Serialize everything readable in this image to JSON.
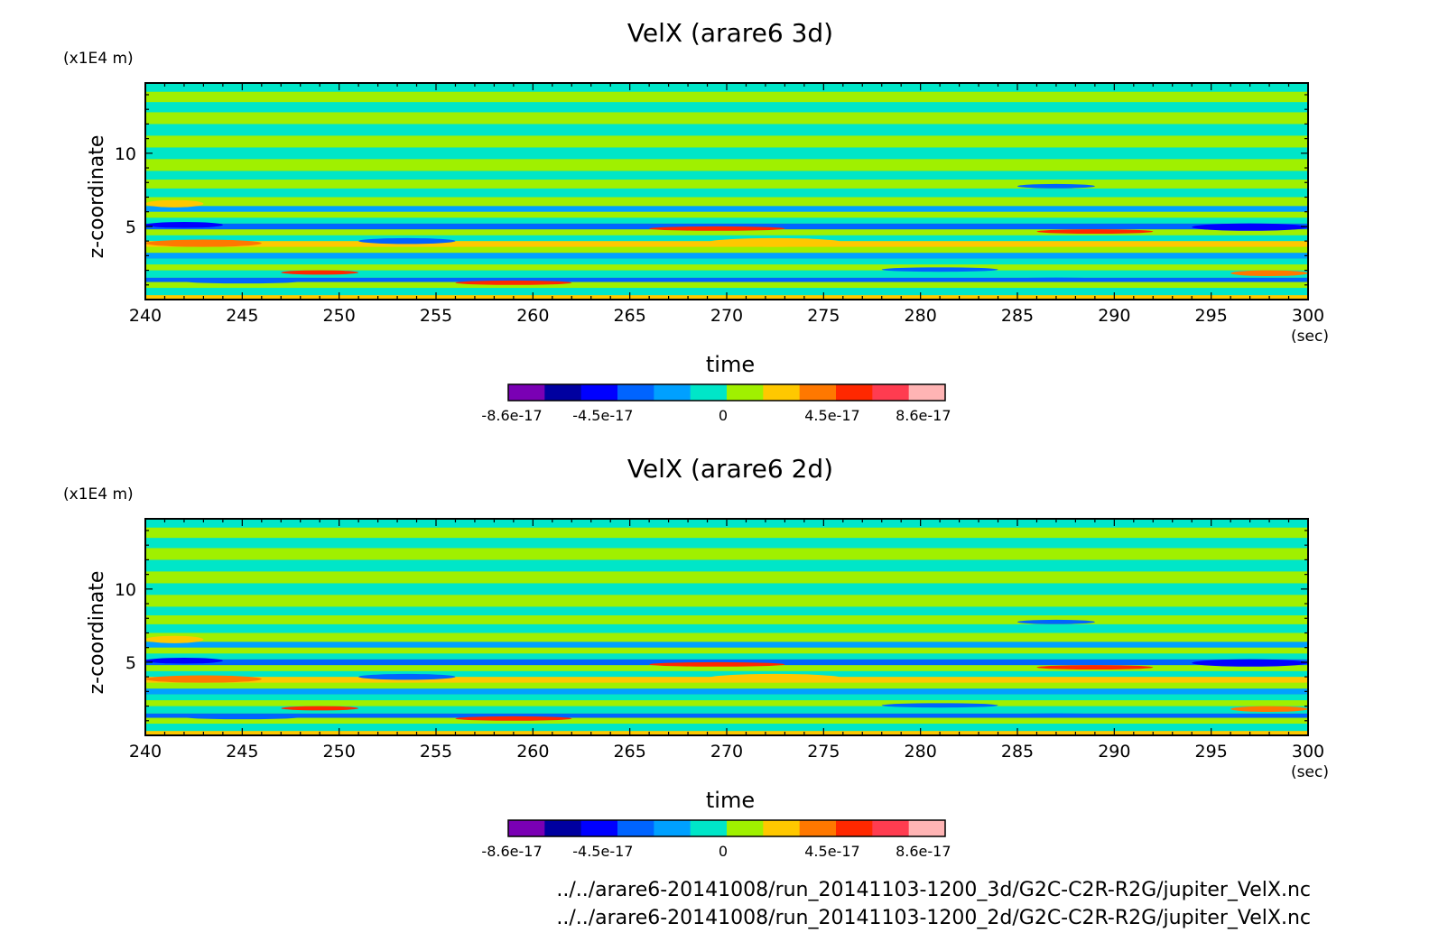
{
  "chart_data": [
    {
      "type": "heatmap",
      "title": "VelX (arare6 3d)",
      "xlabel": "time",
      "x_unit": "(sec)",
      "ylabel": "z-coordinate",
      "y_unit": "(x1E4 m)",
      "xlim": [
        240,
        300
      ],
      "ylim": [
        0,
        14.8
      ],
      "x_ticks": [
        240,
        245,
        250,
        255,
        260,
        265,
        270,
        275,
        280,
        285,
        290,
        295,
        300
      ],
      "y_ticks": [
        5,
        10
      ],
      "colorbar": {
        "levels": [
          -8.6e-17,
          -6.88e-17,
          -5.16e-17,
          -3.44e-17,
          -1.72e-17,
          0,
          1.72e-17,
          3.44e-17,
          5.16e-17,
          6.88e-17,
          8.6e-17
        ],
        "tick_labels": [
          "-8.6e-17",
          "-4.5e-17",
          "0",
          "4.5e-17",
          "8.6e-17"
        ],
        "colors": [
          "#7a00b4",
          "#0000a0",
          "#0000ff",
          "#0064ff",
          "#00a0ff",
          "#00e6c8",
          "#a0f000",
          "#ffc800",
          "#ff7800",
          "#ff2800",
          "#ff3c50",
          "#ffb4b4"
        ]
      },
      "bands": [
        {
          "z0": 0.0,
          "z1": 0.3,
          "level": 7
        },
        {
          "z0": 0.3,
          "z1": 0.8,
          "level": 5
        },
        {
          "z0": 0.8,
          "z1": 1.2,
          "level": 6
        },
        {
          "z0": 1.2,
          "z1": 1.5,
          "level": 3
        },
        {
          "z0": 1.5,
          "z1": 2.0,
          "level": 5
        },
        {
          "z0": 2.0,
          "z1": 2.4,
          "level": 6
        },
        {
          "z0": 2.4,
          "z1": 2.8,
          "level": 5
        },
        {
          "z0": 2.8,
          "z1": 3.2,
          "level": 4
        },
        {
          "z0": 3.2,
          "z1": 3.6,
          "level": 6
        },
        {
          "z0": 3.6,
          "z1": 4.0,
          "level": 7
        },
        {
          "z0": 4.0,
          "z1": 4.4,
          "level": 5
        },
        {
          "z0": 4.4,
          "z1": 4.8,
          "level": 6
        },
        {
          "z0": 4.8,
          "z1": 5.2,
          "level": 3
        },
        {
          "z0": 5.2,
          "z1": 5.6,
          "level": 5
        },
        {
          "z0": 5.6,
          "z1": 6.0,
          "level": 6
        },
        {
          "z0": 6.0,
          "z1": 6.4,
          "level": 4
        },
        {
          "z0": 6.4,
          "z1": 7.0,
          "level": 6
        },
        {
          "z0": 7.0,
          "z1": 7.6,
          "level": 5
        },
        {
          "z0": 7.6,
          "z1": 8.2,
          "level": 6
        },
        {
          "z0": 8.2,
          "z1": 8.8,
          "level": 5
        },
        {
          "z0": 8.8,
          "z1": 9.6,
          "level": 6
        },
        {
          "z0": 9.6,
          "z1": 10.4,
          "level": 5
        },
        {
          "z0": 10.4,
          "z1": 11.2,
          "level": 6
        },
        {
          "z0": 11.2,
          "z1": 12.0,
          "level": 5
        },
        {
          "z0": 12.0,
          "z1": 12.8,
          "level": 6
        },
        {
          "z0": 12.8,
          "z1": 13.5,
          "level": 5
        },
        {
          "z0": 13.5,
          "z1": 14.2,
          "level": 6
        },
        {
          "z0": 14.2,
          "z1": 14.8,
          "level": 5
        }
      ],
      "features": [
        {
          "t0": 240,
          "t1": 244,
          "z0": 4.9,
          "z1": 5.3,
          "level": 2
        },
        {
          "t0": 240,
          "t1": 246,
          "z0": 3.6,
          "z1": 4.1,
          "level": 8
        },
        {
          "t0": 240,
          "t1": 243,
          "z0": 6.3,
          "z1": 6.8,
          "level": 7
        },
        {
          "t0": 247,
          "t1": 251,
          "z0": 1.7,
          "z1": 2.0,
          "level": 9
        },
        {
          "t0": 242,
          "t1": 248,
          "z0": 1.1,
          "z1": 1.4,
          "level": 3
        },
        {
          "t0": 251,
          "t1": 256,
          "z0": 3.8,
          "z1": 4.2,
          "level": 3
        },
        {
          "t0": 256,
          "t1": 262,
          "z0": 1.0,
          "z1": 1.3,
          "level": 9
        },
        {
          "t0": 266,
          "t1": 273,
          "z0": 4.7,
          "z1": 5.0,
          "level": 9
        },
        {
          "t0": 269,
          "t1": 276,
          "z0": 3.6,
          "z1": 4.2,
          "level": 7
        },
        {
          "t0": 278,
          "t1": 284,
          "z0": 1.9,
          "z1": 2.2,
          "level": 3
        },
        {
          "t0": 286,
          "t1": 292,
          "z0": 4.5,
          "z1": 4.8,
          "level": 9
        },
        {
          "t0": 284,
          "t1": 290,
          "z0": 1.2,
          "z1": 1.5,
          "level": 3
        },
        {
          "t0": 294,
          "t1": 300,
          "z0": 4.7,
          "z1": 5.2,
          "level": 2
        },
        {
          "t0": 296,
          "t1": 300,
          "z0": 1.6,
          "z1": 2.0,
          "level": 8
        },
        {
          "t0": 285,
          "t1": 289,
          "z0": 7.6,
          "z1": 7.9,
          "level": 3
        }
      ]
    },
    {
      "type": "heatmap",
      "title": "VelX (arare6 2d)",
      "xlabel": "time",
      "x_unit": "(sec)",
      "ylabel": "z-coordinate",
      "y_unit": "(x1E4 m)",
      "xlim": [
        240,
        300
      ],
      "ylim": [
        0,
        14.8
      ],
      "x_ticks": [
        240,
        245,
        250,
        255,
        260,
        265,
        270,
        275,
        280,
        285,
        290,
        295,
        300
      ],
      "y_ticks": [
        5,
        10
      ],
      "colorbar": {
        "levels": [
          -8.6e-17,
          -6.88e-17,
          -5.16e-17,
          -3.44e-17,
          -1.72e-17,
          0,
          1.72e-17,
          3.44e-17,
          5.16e-17,
          6.88e-17,
          8.6e-17
        ],
        "tick_labels": [
          "-8.6e-17",
          "-4.5e-17",
          "0",
          "4.5e-17",
          "8.6e-17"
        ],
        "colors": [
          "#7a00b4",
          "#0000a0",
          "#0000ff",
          "#0064ff",
          "#00a0ff",
          "#00e6c8",
          "#a0f000",
          "#ffc800",
          "#ff7800",
          "#ff2800",
          "#ff3c50",
          "#ffb4b4"
        ]
      },
      "bands": [
        {
          "z0": 0.0,
          "z1": 0.3,
          "level": 7
        },
        {
          "z0": 0.3,
          "z1": 0.8,
          "level": 5
        },
        {
          "z0": 0.8,
          "z1": 1.2,
          "level": 6
        },
        {
          "z0": 1.2,
          "z1": 1.5,
          "level": 3
        },
        {
          "z0": 1.5,
          "z1": 2.0,
          "level": 5
        },
        {
          "z0": 2.0,
          "z1": 2.4,
          "level": 6
        },
        {
          "z0": 2.4,
          "z1": 2.8,
          "level": 5
        },
        {
          "z0": 2.8,
          "z1": 3.2,
          "level": 4
        },
        {
          "z0": 3.2,
          "z1": 3.6,
          "level": 6
        },
        {
          "z0": 3.6,
          "z1": 4.0,
          "level": 7
        },
        {
          "z0": 4.0,
          "z1": 4.4,
          "level": 5
        },
        {
          "z0": 4.4,
          "z1": 4.8,
          "level": 6
        },
        {
          "z0": 4.8,
          "z1": 5.2,
          "level": 3
        },
        {
          "z0": 5.2,
          "z1": 5.6,
          "level": 5
        },
        {
          "z0": 5.6,
          "z1": 6.0,
          "level": 6
        },
        {
          "z0": 6.0,
          "z1": 6.4,
          "level": 4
        },
        {
          "z0": 6.4,
          "z1": 7.0,
          "level": 6
        },
        {
          "z0": 7.0,
          "z1": 7.6,
          "level": 5
        },
        {
          "z0": 7.6,
          "z1": 8.2,
          "level": 6
        },
        {
          "z0": 8.2,
          "z1": 8.8,
          "level": 5
        },
        {
          "z0": 8.8,
          "z1": 9.6,
          "level": 6
        },
        {
          "z0": 9.6,
          "z1": 10.4,
          "level": 5
        },
        {
          "z0": 10.4,
          "z1": 11.2,
          "level": 6
        },
        {
          "z0": 11.2,
          "z1": 12.0,
          "level": 5
        },
        {
          "z0": 12.0,
          "z1": 12.8,
          "level": 6
        },
        {
          "z0": 12.8,
          "z1": 13.5,
          "level": 5
        },
        {
          "z0": 13.5,
          "z1": 14.2,
          "level": 6
        },
        {
          "z0": 14.2,
          "z1": 14.8,
          "level": 5
        }
      ],
      "features": [
        {
          "t0": 240,
          "t1": 244,
          "z0": 4.9,
          "z1": 5.3,
          "level": 2
        },
        {
          "t0": 240,
          "t1": 246,
          "z0": 3.6,
          "z1": 4.1,
          "level": 8
        },
        {
          "t0": 240,
          "t1": 243,
          "z0": 6.3,
          "z1": 6.8,
          "level": 7
        },
        {
          "t0": 247,
          "t1": 251,
          "z0": 1.7,
          "z1": 2.0,
          "level": 9
        },
        {
          "t0": 242,
          "t1": 248,
          "z0": 1.1,
          "z1": 1.4,
          "level": 3
        },
        {
          "t0": 251,
          "t1": 256,
          "z0": 3.8,
          "z1": 4.2,
          "level": 3
        },
        {
          "t0": 256,
          "t1": 262,
          "z0": 1.0,
          "z1": 1.3,
          "level": 9
        },
        {
          "t0": 266,
          "t1": 273,
          "z0": 4.7,
          "z1": 5.0,
          "level": 9
        },
        {
          "t0": 269,
          "t1": 276,
          "z0": 3.6,
          "z1": 4.2,
          "level": 7
        },
        {
          "t0": 278,
          "t1": 284,
          "z0": 1.9,
          "z1": 2.2,
          "level": 3
        },
        {
          "t0": 286,
          "t1": 292,
          "z0": 4.5,
          "z1": 4.8,
          "level": 9
        },
        {
          "t0": 284,
          "t1": 290,
          "z0": 1.2,
          "z1": 1.5,
          "level": 3
        },
        {
          "t0": 294,
          "t1": 300,
          "z0": 4.7,
          "z1": 5.2,
          "level": 2
        },
        {
          "t0": 296,
          "t1": 300,
          "z0": 1.6,
          "z1": 2.0,
          "level": 8
        },
        {
          "t0": 285,
          "t1": 289,
          "z0": 7.6,
          "z1": 7.9,
          "level": 3
        }
      ]
    }
  ],
  "footer": {
    "lines": [
      "../../arare6-20141008/run_20141103-1200_3d/G2C-C2R-R2G/jupiter_VelX.nc",
      "../../arare6-20141008/run_20141103-1200_2d/G2C-C2R-R2G/jupiter_VelX.nc"
    ]
  }
}
